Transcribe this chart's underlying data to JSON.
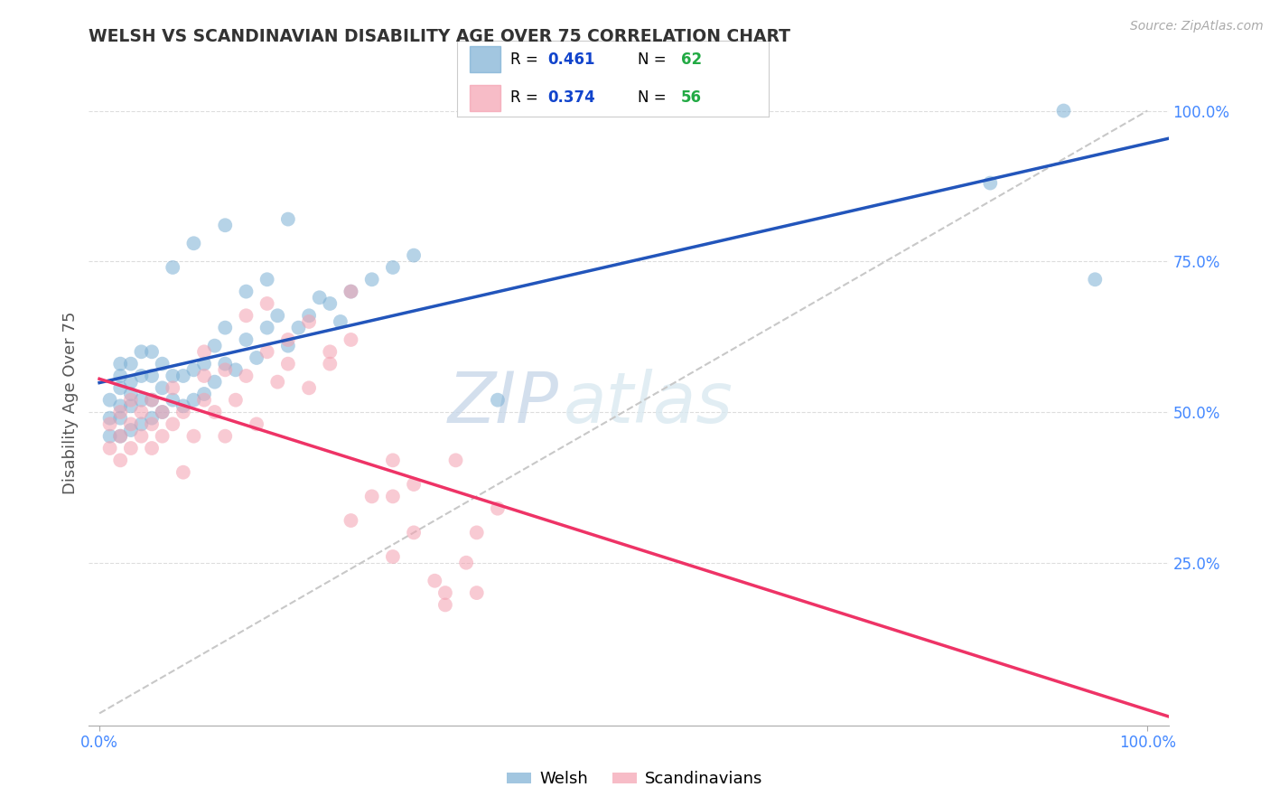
{
  "title": "WELSH VS SCANDINAVIAN DISABILITY AGE OVER 75 CORRELATION CHART",
  "source": "Source: ZipAtlas.com",
  "ylabel": "Disability Age Over 75",
  "welsh_R": 0.461,
  "welsh_N": 62,
  "scand_R": 0.374,
  "scand_N": 56,
  "welsh_color": "#7BAFD4",
  "scand_color": "#F4A0B0",
  "welsh_line_color": "#2255BB",
  "scand_line_color": "#EE3366",
  "ref_line_color": "#C8C8C8",
  "title_color": "#333333",
  "R_color": "#1144CC",
  "N_color": "#22AA44",
  "bg_color": "#FFFFFF",
  "grid_color": "#DDDDDD",
  "axis_label_color": "#555555",
  "tick_label_color": "#4488FF",
  "xlim": [
    -0.01,
    1.02
  ],
  "ylim": [
    -0.02,
    1.05
  ],
  "xtick_positions": [
    0.0,
    1.0
  ],
  "xtick_labels": [
    "0.0%",
    "100.0%"
  ],
  "ytick_positions": [
    0.25,
    0.5,
    0.75,
    1.0
  ],
  "ytick_labels": [
    "25.0%",
    "50.0%",
    "75.0%",
    "100.0%"
  ],
  "welsh_x": [
    0.01,
    0.01,
    0.01,
    0.02,
    0.02,
    0.02,
    0.02,
    0.02,
    0.02,
    0.03,
    0.03,
    0.03,
    0.03,
    0.03,
    0.04,
    0.04,
    0.04,
    0.04,
    0.05,
    0.05,
    0.05,
    0.05,
    0.06,
    0.06,
    0.06,
    0.07,
    0.07,
    0.08,
    0.08,
    0.09,
    0.09,
    0.1,
    0.1,
    0.11,
    0.11,
    0.12,
    0.12,
    0.13,
    0.14,
    0.15,
    0.16,
    0.17,
    0.18,
    0.19,
    0.2,
    0.22,
    0.24,
    0.26,
    0.28,
    0.3,
    0.07,
    0.09,
    0.12,
    0.18,
    0.14,
    0.16,
    0.21,
    0.23,
    0.85,
    0.92,
    0.38,
    0.95
  ],
  "welsh_y": [
    0.46,
    0.49,
    0.52,
    0.46,
    0.49,
    0.51,
    0.54,
    0.56,
    0.58,
    0.47,
    0.51,
    0.53,
    0.55,
    0.58,
    0.48,
    0.52,
    0.56,
    0.6,
    0.49,
    0.52,
    0.56,
    0.6,
    0.5,
    0.54,
    0.58,
    0.52,
    0.56,
    0.51,
    0.56,
    0.52,
    0.57,
    0.53,
    0.58,
    0.55,
    0.61,
    0.58,
    0.64,
    0.57,
    0.62,
    0.59,
    0.64,
    0.66,
    0.61,
    0.64,
    0.66,
    0.68,
    0.7,
    0.72,
    0.74,
    0.76,
    0.74,
    0.78,
    0.81,
    0.82,
    0.7,
    0.72,
    0.69,
    0.65,
    0.88,
    1.0,
    0.52,
    0.72
  ],
  "scand_x": [
    0.01,
    0.01,
    0.02,
    0.02,
    0.02,
    0.03,
    0.03,
    0.03,
    0.04,
    0.04,
    0.05,
    0.05,
    0.05,
    0.06,
    0.06,
    0.07,
    0.07,
    0.08,
    0.09,
    0.1,
    0.1,
    0.11,
    0.12,
    0.13,
    0.14,
    0.15,
    0.16,
    0.17,
    0.18,
    0.2,
    0.22,
    0.24,
    0.14,
    0.18,
    0.12,
    0.1,
    0.08,
    0.16,
    0.2,
    0.24,
    0.28,
    0.22,
    0.26,
    0.3,
    0.24,
    0.28,
    0.32,
    0.36,
    0.3,
    0.34,
    0.38,
    0.33,
    0.36,
    0.28,
    0.35,
    0.33
  ],
  "scand_y": [
    0.44,
    0.48,
    0.42,
    0.46,
    0.5,
    0.44,
    0.48,
    0.52,
    0.46,
    0.5,
    0.44,
    0.48,
    0.52,
    0.46,
    0.5,
    0.48,
    0.54,
    0.5,
    0.46,
    0.52,
    0.56,
    0.5,
    0.46,
    0.52,
    0.56,
    0.48,
    0.6,
    0.55,
    0.58,
    0.54,
    0.6,
    0.62,
    0.66,
    0.62,
    0.57,
    0.6,
    0.4,
    0.68,
    0.65,
    0.7,
    0.42,
    0.58,
    0.36,
    0.3,
    0.32,
    0.26,
    0.22,
    0.2,
    0.38,
    0.42,
    0.34,
    0.18,
    0.3,
    0.36,
    0.25,
    0.2
  ]
}
